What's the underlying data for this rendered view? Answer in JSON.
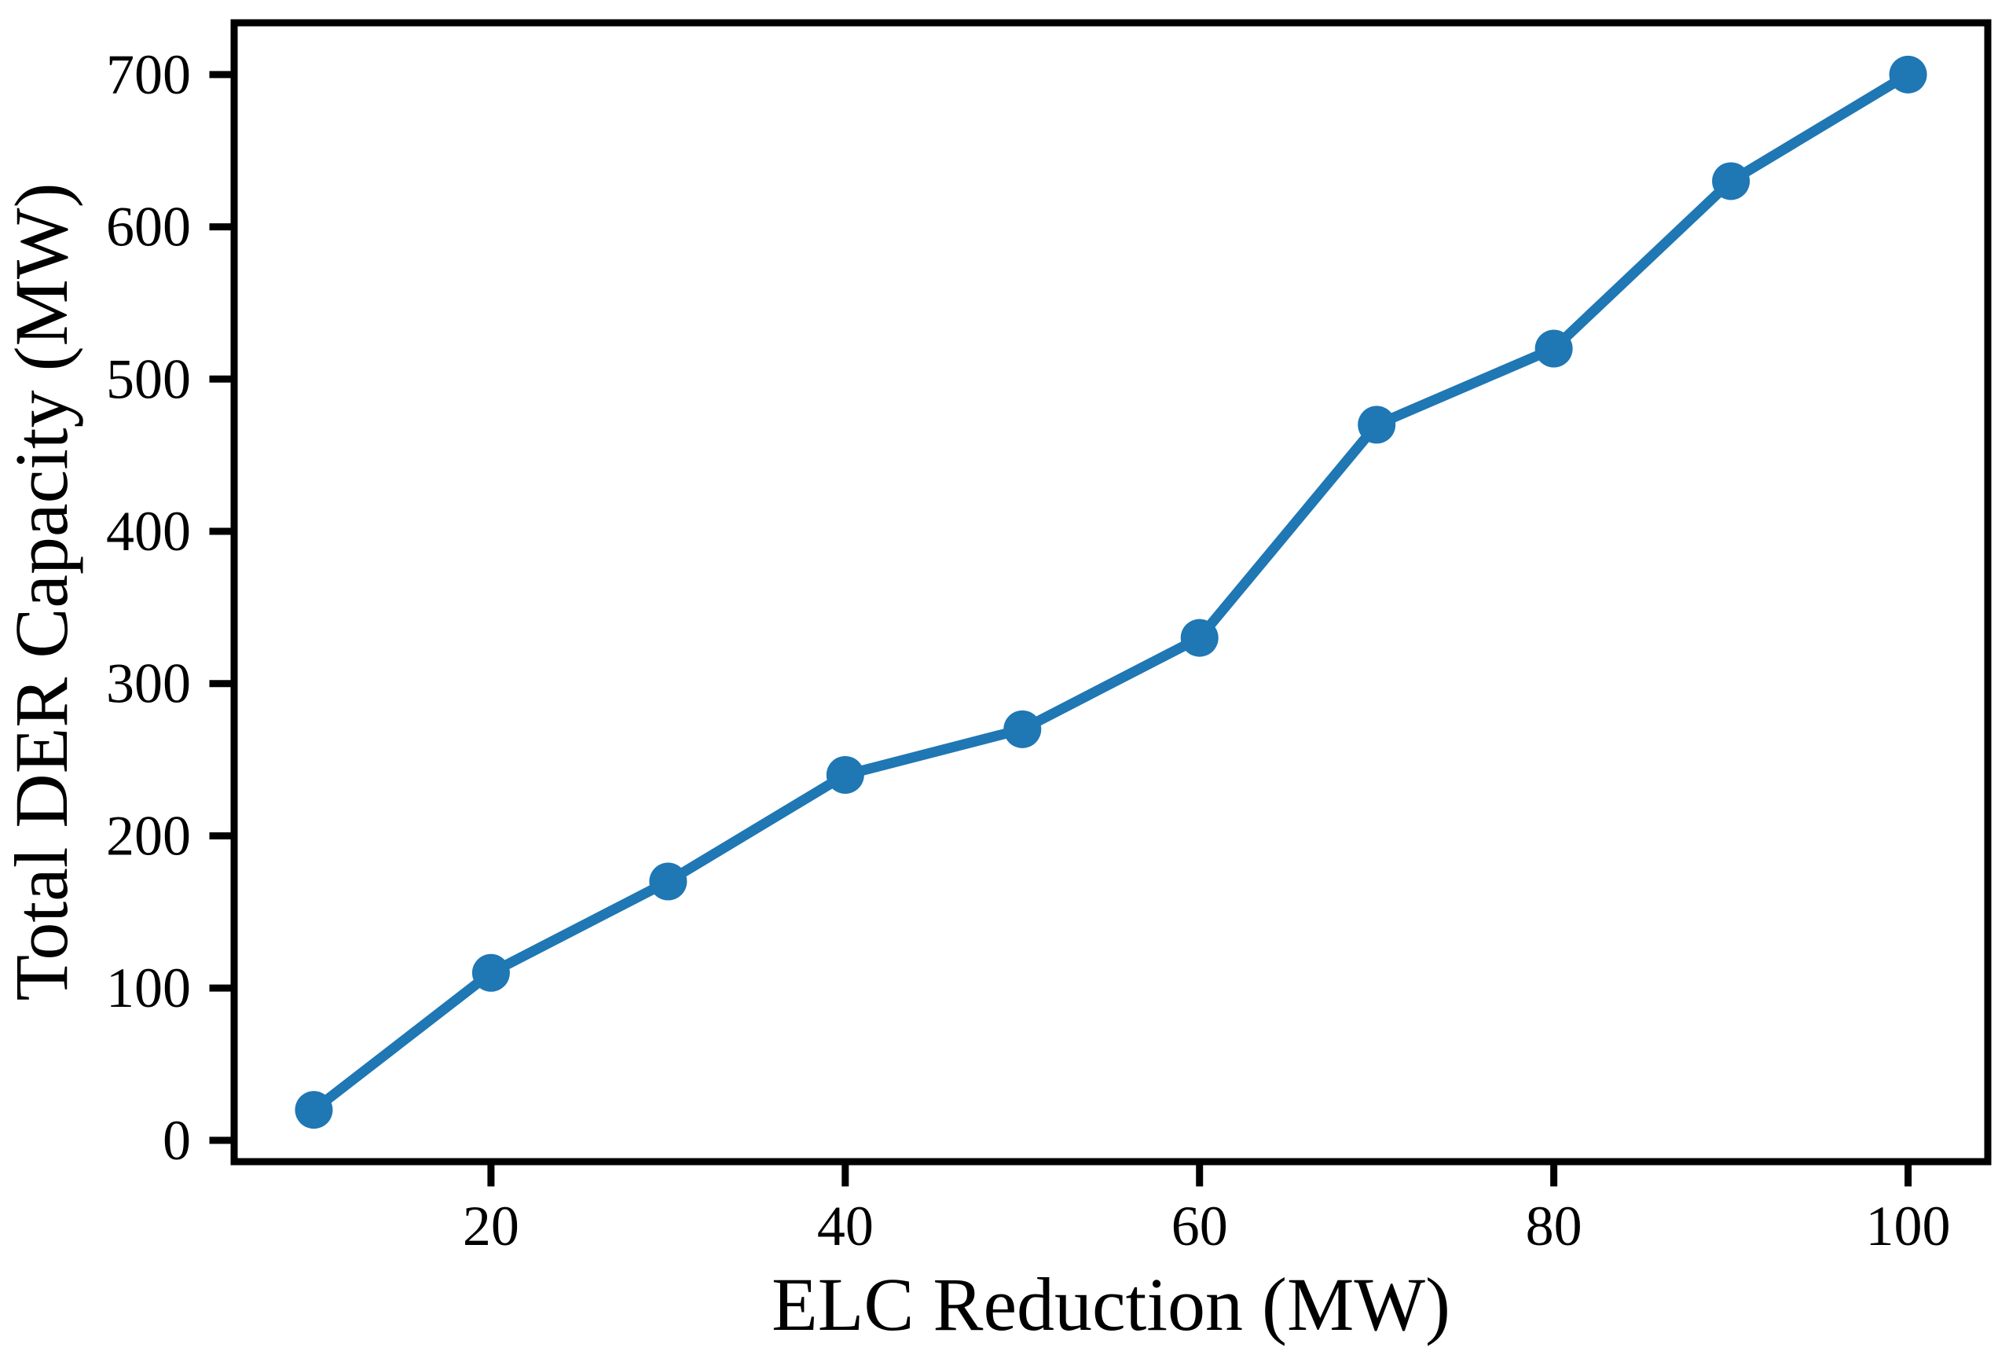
{
  "figure": {
    "background_color": "#ffffff"
  },
  "chart_data": {
    "type": "line",
    "title": "",
    "xlabel": "ELC Reduction (MW)",
    "ylabel": "Total DER Capacity (MW)",
    "x": [
      10,
      20,
      30,
      40,
      50,
      60,
      70,
      80,
      90,
      100
    ],
    "y": [
      20,
      110,
      170,
      240,
      270,
      330,
      470,
      520,
      630,
      700
    ],
    "xticks": [
      20,
      40,
      60,
      80,
      100
    ],
    "yticks": [
      0,
      100,
      200,
      300,
      400,
      500,
      600,
      700
    ],
    "xlim": [
      5.5,
      104.5
    ],
    "ylim": [
      -14,
      734
    ],
    "grid": false,
    "legend": false,
    "marker": "circle",
    "line_color": "#1f77b4",
    "marker_color": "#1f77b4",
    "axis_color": "#000000",
    "tick_label_color": "#000000"
  }
}
